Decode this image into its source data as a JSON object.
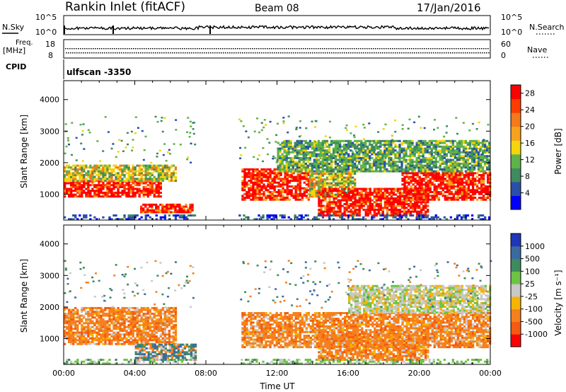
{
  "header": {
    "station": "Rankin Inlet (fitACF)",
    "beam": "Beam 08",
    "date": "17/Jan/2016"
  },
  "status_panels": {
    "nsky_label": "N.Sky",
    "nsearch_label": "N.Search",
    "nsky_ticks": [
      "10^5",
      "10^0"
    ],
    "nsearch_ticks": [
      "10^5",
      "10^0"
    ],
    "freq_label": "Freq.",
    "freq_unit": "[MHz]",
    "freq_ticks": [
      "18",
      "8"
    ],
    "nave_label": "Nave",
    "nave_ticks": [
      "60",
      "0"
    ],
    "cpid_label": "CPID",
    "cpid_value": "ulfscan -3350"
  },
  "colors": {
    "power_scale": [
      "#0000ff",
      "#2a4fa8",
      "#3f8a5e",
      "#5fb24a",
      "#f4d40a",
      "#f7a21c",
      "#f47a1c",
      "#ff3c00",
      "#ff0000"
    ],
    "velocity_scale": [
      "#2036b8",
      "#3a6aa0",
      "#3f8a5e",
      "#6cc444",
      "#c8c8c8",
      "#f6b400",
      "#f6801c",
      "#f45a10",
      "#ff0000"
    ]
  },
  "chart_data": [
    {
      "type": "heatmap",
      "name": "power",
      "ylabel": "Slant Range [km]",
      "xlabel": "Time UT",
      "x_ticks": [
        "00:00",
        "04:00",
        "08:00",
        "12:00",
        "16:00",
        "20:00",
        "00:00"
      ],
      "y_ticks": [
        "1000",
        "2000",
        "3000",
        "4000"
      ],
      "xlim_hours": [
        0,
        24
      ],
      "ylim_km": [
        180,
        4600
      ],
      "colorbar_label": "Power [dB]",
      "colorbar_ticks": [
        "4",
        "8",
        "12",
        "16",
        "20",
        "24",
        "28"
      ],
      "colorbar_range": [
        0,
        30
      ],
      "bands": [
        {
          "t0": 0,
          "t1": 5.5,
          "r0": 900,
          "r1": 1400,
          "level": "high"
        },
        {
          "t0": 0,
          "t1": 6.3,
          "r0": 1400,
          "r1": 1900,
          "level": "mid"
        },
        {
          "t0": 4.3,
          "t1": 7.3,
          "r0": 400,
          "r1": 700,
          "level": "high"
        },
        {
          "t0": 10.0,
          "t1": 13.8,
          "r0": 800,
          "r1": 1800,
          "level": "high"
        },
        {
          "t0": 13.8,
          "t1": 16.4,
          "r0": 900,
          "r1": 1700,
          "level": "mid"
        },
        {
          "t0": 14.3,
          "t1": 20.5,
          "r0": 300,
          "r1": 1200,
          "level": "high"
        },
        {
          "t0": 19.0,
          "t1": 24.0,
          "r0": 800,
          "r1": 1700,
          "level": "high"
        },
        {
          "t0": 12.0,
          "t1": 24.0,
          "r0": 1700,
          "r1": 2700,
          "level": "low"
        },
        {
          "t0": 0,
          "t1": 24.0,
          "r0": 180,
          "r1": 320,
          "level": "weak"
        }
      ]
    },
    {
      "type": "heatmap",
      "name": "velocity",
      "ylabel": "Slant Range [km]",
      "xlabel": "Time UT",
      "x_ticks": [
        "00:00",
        "04:00",
        "08:00",
        "12:00",
        "16:00",
        "20:00",
        "00:00"
      ],
      "y_ticks": [
        "1000",
        "2000",
        "3000",
        "4000"
      ],
      "xlim_hours": [
        0,
        24
      ],
      "ylim_km": [
        180,
        4600
      ],
      "colorbar_label": "Velocity [m s⁻¹]",
      "colorbar_ticks": [
        "1000",
        "500",
        "100",
        "25",
        "-25",
        "-100",
        "-500",
        "-1000"
      ],
      "bands": [
        {
          "t0": 0,
          "t1": 6.3,
          "r0": 800,
          "r1": 2000,
          "level": "neg"
        },
        {
          "t0": 4.0,
          "t1": 7.4,
          "r0": 300,
          "r1": 800,
          "level": "mixed"
        },
        {
          "t0": 10.0,
          "t1": 24.0,
          "r0": 700,
          "r1": 1800,
          "level": "neg"
        },
        {
          "t0": 14.3,
          "t1": 20.5,
          "r0": 300,
          "r1": 1100,
          "level": "neg"
        },
        {
          "t0": 16.0,
          "t1": 24.0,
          "r0": 1800,
          "r1": 2700,
          "level": "grey"
        },
        {
          "t0": 0,
          "t1": 24.0,
          "r0": 180,
          "r1": 320,
          "level": "weak"
        }
      ]
    }
  ]
}
